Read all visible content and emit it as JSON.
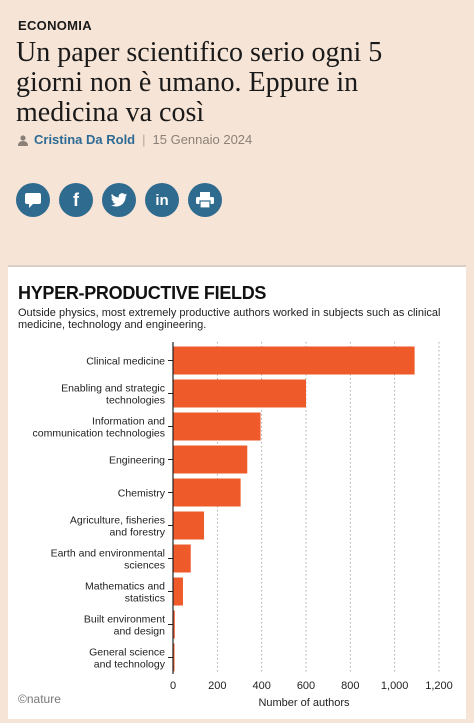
{
  "section_label": "ECONOMIA",
  "headline": "Un paper scientifico serio ogni 5 giorni non è umano. Eppure in medicina va così",
  "byline": {
    "author": "Cristina Da Rold",
    "separator": "|",
    "date": "15 Gennaio 2024"
  },
  "share_buttons": [
    {
      "icon": "comment-icon",
      "glyph": "▬"
    },
    {
      "icon": "facebook-icon",
      "glyph": "f"
    },
    {
      "icon": "twitter-icon",
      "glyph": "🐦"
    },
    {
      "icon": "linkedin-icon",
      "glyph": "in"
    },
    {
      "icon": "print-icon",
      "glyph": "⎙"
    }
  ],
  "colors": {
    "accent": "#2f6a8f",
    "bar": "#ef5a2a",
    "background": "#f6e4d6"
  },
  "chart_data": {
    "type": "bar",
    "orientation": "horizontal",
    "title": "HYPER-PRODUCTIVE FIELDS",
    "subtitle": "Outside physics, most extremely productive authors worked in subjects such as clinical medicine, technology and engineering.",
    "categories": [
      [
        "Clinical medicine"
      ],
      [
        "Enabling and strategic",
        "technologies"
      ],
      [
        "Information and",
        "communication technologies"
      ],
      [
        "Engineering"
      ],
      [
        "Chemistry"
      ],
      [
        "Agriculture, fisheries",
        "and forestry"
      ],
      [
        "Earth and environmental",
        "sciences"
      ],
      [
        "Mathematics and",
        "statistics"
      ],
      [
        "Built environment",
        "and design"
      ],
      [
        "General science",
        "and technology"
      ]
    ],
    "values": [
      1090,
      600,
      395,
      335,
      305,
      140,
      80,
      45,
      8,
      4
    ],
    "xlabel": "Number of authors",
    "xlim": [
      0,
      1200
    ],
    "xticks": [
      0,
      200,
      400,
      600,
      800,
      "1,000",
      "1,200"
    ],
    "grid": "vertical dotted",
    "source": "©nature"
  }
}
